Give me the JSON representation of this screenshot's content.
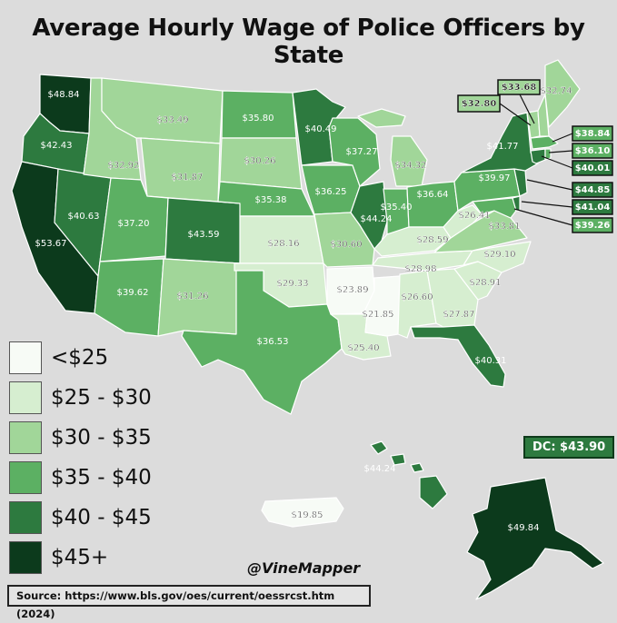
{
  "title": "Average Hourly Wage of Police Officers by State",
  "credit": "@VineMapper",
  "source": "Source: https://www.bls.gov/oes/current/oessrcst.htm (2024)",
  "dc": "DC: $43.90",
  "colors": {
    "lt25": "#f7fbf6",
    "b25_30": "#d6eed0",
    "b30_35": "#a1d699",
    "b35_40": "#5cb063",
    "b40_45": "#2d7a3f",
    "gt45": "#0c3a1c"
  },
  "legend": [
    {
      "label": "<$25",
      "color": "#f7fbf6"
    },
    {
      "label": "$25 - $30",
      "color": "#d6eed0"
    },
    {
      "label": "$30 - $35",
      "color": "#a1d699"
    },
    {
      "label": "$35 - $40",
      "color": "#5cb063"
    },
    {
      "label": "$40 - $45",
      "color": "#2d7a3f"
    },
    {
      "label": "$45+",
      "color": "#0c3a1c"
    }
  ],
  "states": {
    "wa": "$48.84",
    "or": "$42.43",
    "ca": "$53.67",
    "nv": "$40.63",
    "id": "$32.92",
    "mt": "$33.49",
    "wy": "$31.87",
    "ut": "$37.20",
    "az": "$39.62",
    "co": "$43.59",
    "nm": "$31.26",
    "nd": "$35.80",
    "sd": "$30.26",
    "ne": "$35.38",
    "ks": "$28.16",
    "ok": "$29.33",
    "tx": "$36.53",
    "mn": "$40.49",
    "ia": "$36.25",
    "mo": "$30.60",
    "ar": "$23.89",
    "la": "$25.40",
    "wi": "$37.27",
    "il": "$44.24",
    "ms": "$21.85",
    "mi": "$34.32",
    "in": "$35.40",
    "ky": "$28.59",
    "tn": "$28.98",
    "al": "$26.60",
    "ga": "$27.87",
    "fl": "$40.31",
    "sc": "$28.91",
    "nc": "$29.10",
    "va": "$33.81",
    "wv": "$26.41",
    "oh": "$36.64",
    "pa": "$39.97",
    "ny": "$41.77",
    "vt": "$33.68",
    "nh": "$32.74",
    "me": "$32.80",
    "ma": "$38.84",
    "ri": "$36.10",
    "ct": "$40.01",
    "nj": "$44.85",
    "de": "$41.04",
    "md": "$39.26",
    "hi": "$44.24",
    "ak": "$49.84",
    "pr": "$19.85"
  }
}
